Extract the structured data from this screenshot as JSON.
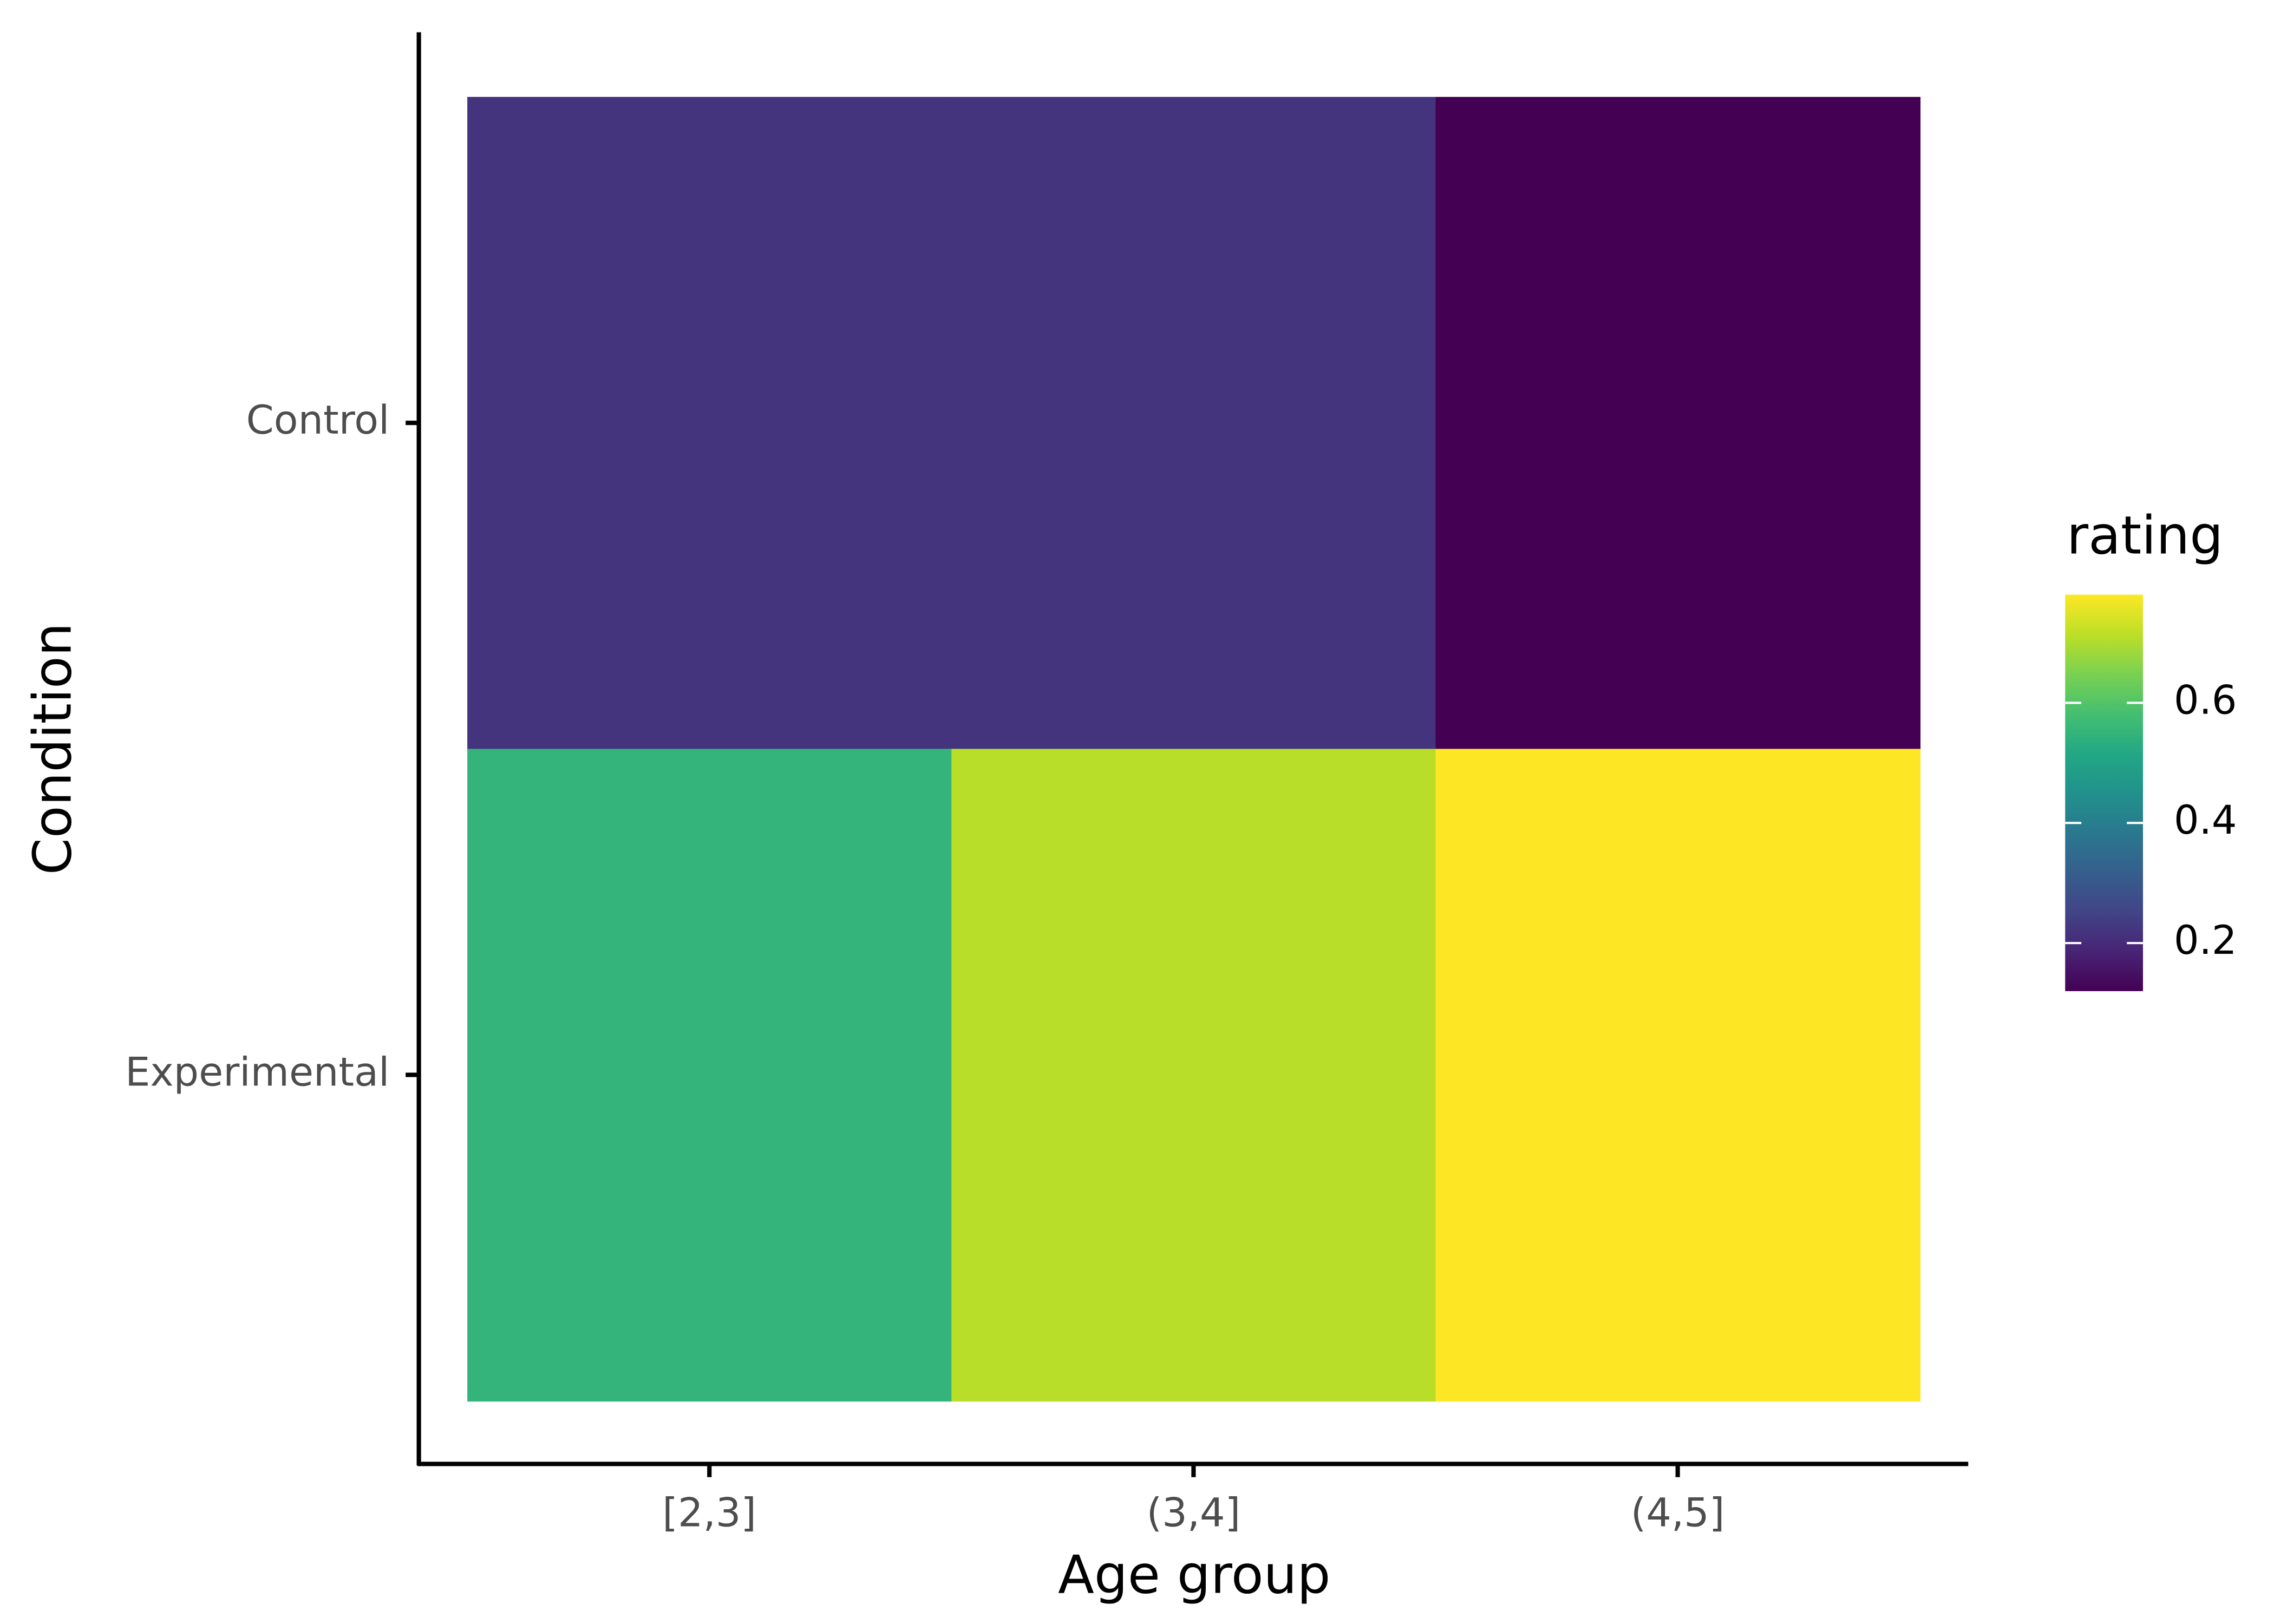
{
  "chart_data": {
    "type": "heatmap",
    "x_label": "Age group",
    "y_label": "Condition",
    "categories": [
      "[2,3]",
      "(3,4]",
      "(4,5]"
    ],
    "rows": [
      "Control",
      "Experimental"
    ],
    "values": [
      [
        0.22,
        0.22,
        0.12
      ],
      [
        0.55,
        0.71,
        0.78
      ]
    ],
    "colormap": "viridis",
    "legend_title": "rating",
    "clim": [
      0.12,
      0.78
    ],
    "cticks": [
      0.2,
      0.4,
      0.6
    ]
  }
}
